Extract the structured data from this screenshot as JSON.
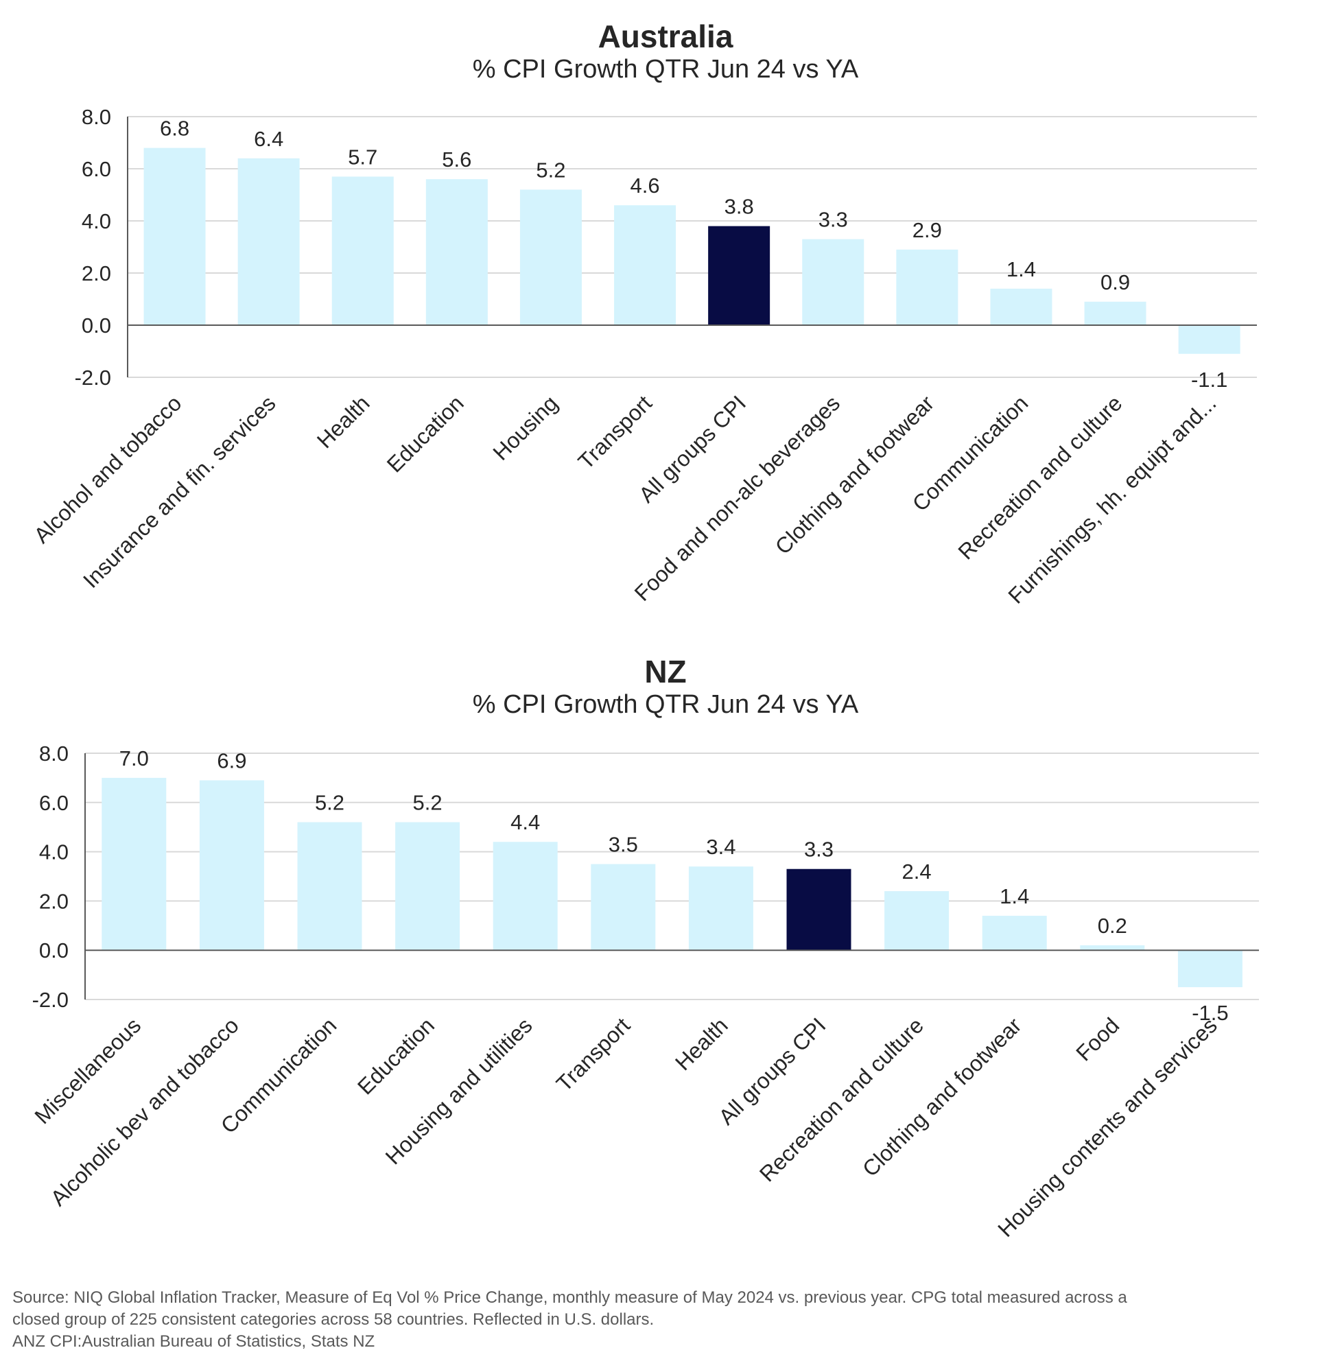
{
  "colors": {
    "bar": "#d4f3fd",
    "highlight": "#080c44",
    "grid": "#d9d9d9",
    "axis": "#595959",
    "text": "#262626"
  },
  "chart_data": [
    {
      "id": "au",
      "type": "bar",
      "title": "Australia",
      "subtitle": "% CPI Growth QTR Jun 24 vs YA",
      "categories": [
        "Alcohol and tobacco",
        "Insurance and fin. services",
        "Health",
        "Education",
        "Housing",
        "Transport",
        "All groups CPI",
        "Food and non-alc beverages",
        "Clothing and footwear",
        "Communication",
        "Recreation and culture",
        "Furnishings, hh. equipt and..."
      ],
      "values": [
        6.8,
        6.4,
        5.7,
        5.6,
        5.2,
        4.6,
        3.8,
        3.3,
        2.9,
        1.4,
        0.9,
        -1.1
      ],
      "value_labels": [
        "6.8",
        "6.4",
        "5.7",
        "5.6",
        "5.2",
        "4.6",
        "3.8",
        "3.3",
        "2.9",
        "1.4",
        "0.9",
        "-1.1"
      ],
      "highlight_category": "All groups CPI",
      "ylim": [
        -2.0,
        8.0
      ],
      "yticks": [
        "-2.0",
        "0.0",
        "2.0",
        "4.0",
        "6.0",
        "8.0"
      ],
      "grid": true
    },
    {
      "id": "nz",
      "type": "bar",
      "title": "NZ",
      "subtitle": "% CPI Growth QTR Jun 24 vs YA",
      "categories": [
        "Miscellaneous",
        "Alcoholic bev and tobacco",
        "Communication",
        "Education",
        "Housing and utilities",
        "Transport",
        "Health",
        "All groups CPI",
        "Recreation and culture",
        "Clothing and footwear",
        "Food",
        "Housing contents and services"
      ],
      "values": [
        7.0,
        6.9,
        5.2,
        5.2,
        4.4,
        3.5,
        3.4,
        3.3,
        2.4,
        1.4,
        0.2,
        -1.5
      ],
      "value_labels": [
        "7.0",
        "6.9",
        "5.2",
        "5.2",
        "4.4",
        "3.5",
        "3.4",
        "3.3",
        "2.4",
        "1.4",
        "0.2",
        "-1.5"
      ],
      "highlight_category": "All groups CPI",
      "ylim": [
        -2.0,
        8.0
      ],
      "yticks": [
        "-2.0",
        "0.0",
        "2.0",
        "4.0",
        "6.0",
        "8.0"
      ],
      "grid": true
    }
  ],
  "source_lines": [
    "Source: NIQ Global Inflation Tracker, Measure of Eq Vol % Price Change, monthly measure of May 2024 vs. previous year. CPG total measured across a",
    "closed group of 225 consistent categories across 58 countries. Reflected in U.S. dollars.",
    "ANZ CPI:Australian Bureau of Statistics, Stats NZ"
  ]
}
